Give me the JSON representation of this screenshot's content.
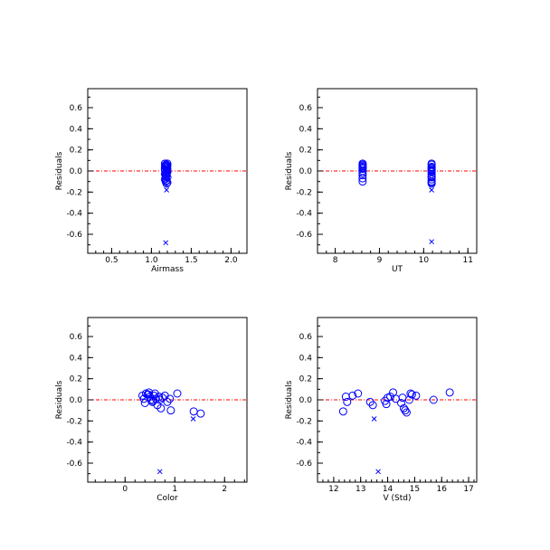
{
  "chart_data": [
    {
      "type": "scatter",
      "xlabel": "Airmass",
      "ylabel": "Residuals",
      "xlim": [
        0.2,
        2.2
      ],
      "ylim": [
        -0.78,
        0.78
      ],
      "xticks": [
        0.5,
        1.0,
        1.5,
        2.0
      ],
      "xtick_labels": [
        "0.5",
        "1.0",
        "1.5",
        "2.0"
      ],
      "yticks": [
        0.6,
        0.4,
        0.2,
        0.0,
        -0.2,
        -0.4,
        -0.6
      ],
      "ytick_labels": [
        "0.6",
        "0.4",
        "0.2",
        "0.0",
        "-0.2",
        "-0.4",
        "-0.6"
      ],
      "zero_line": true,
      "series": [
        {
          "marker": "circle",
          "color": "#0000ff",
          "x": [
            1.17,
            1.18,
            1.19,
            1.2,
            1.17,
            1.18,
            1.19,
            1.2,
            1.17,
            1.19,
            1.2,
            1.18,
            1.17,
            1.19,
            1.18,
            1.2,
            1.17,
            1.19,
            1.18,
            1.2,
            1.19,
            1.18,
            1.17,
            1.19,
            1.2,
            1.18
          ],
          "y": [
            0.07,
            0.06,
            0.06,
            0.05,
            0.04,
            0.04,
            0.03,
            0.02,
            0.01,
            0.0,
            -0.01,
            -0.02,
            -0.03,
            -0.04,
            -0.05,
            -0.06,
            -0.08,
            -0.09,
            -0.1,
            -0.11,
            -0.12,
            0.05,
            0.02,
            -0.02,
            0.07,
            -0.07
          ]
        },
        {
          "marker": "cross",
          "color": "#0000ff",
          "x": [
            1.19,
            1.18
          ],
          "y": [
            -0.18,
            -0.68
          ]
        }
      ]
    },
    {
      "type": "scatter",
      "xlabel": "UT",
      "ylabel": "Residuals",
      "xlim": [
        7.6,
        11.2
      ],
      "ylim": [
        -0.78,
        0.78
      ],
      "xticks": [
        8,
        9,
        10,
        11
      ],
      "xtick_labels": [
        "8",
        "9",
        "10",
        "11"
      ],
      "yticks": [
        0.6,
        0.4,
        0.2,
        0.0,
        -0.2,
        -0.4,
        -0.6
      ],
      "ytick_labels": [
        "0.6",
        "0.4",
        "0.2",
        "0.0",
        "-0.2",
        "-0.4",
        "-0.6"
      ],
      "zero_line": true,
      "series": [
        {
          "marker": "circle",
          "color": "#0000ff",
          "x": [
            8.62,
            8.62,
            8.62,
            8.62,
            8.62,
            8.62,
            8.62,
            8.62,
            8.62,
            8.62,
            8.62,
            10.18,
            10.18,
            10.18,
            10.18,
            10.18,
            10.18,
            10.18,
            10.18,
            10.18,
            10.18,
            10.18,
            10.18,
            10.18,
            10.18,
            10.18
          ],
          "y": [
            0.07,
            0.06,
            0.05,
            0.04,
            0.03,
            0.02,
            0.0,
            -0.02,
            -0.04,
            -0.07,
            -0.1,
            0.07,
            0.06,
            0.04,
            0.03,
            0.01,
            0.0,
            -0.01,
            -0.03,
            -0.05,
            -0.06,
            -0.08,
            -0.1,
            -0.11,
            -0.12,
            0.02
          ]
        },
        {
          "marker": "cross",
          "color": "#0000ff",
          "x": [
            10.18,
            10.18
          ],
          "y": [
            -0.18,
            -0.67
          ]
        }
      ]
    },
    {
      "type": "scatter",
      "xlabel": "Color",
      "ylabel": "Residuals",
      "xlim": [
        -0.75,
        2.45
      ],
      "ylim": [
        -0.78,
        0.78
      ],
      "xticks": [
        0,
        1,
        2
      ],
      "xtick_labels": [
        "0",
        "1",
        "2"
      ],
      "yticks": [
        0.6,
        0.4,
        0.2,
        0.0,
        -0.2,
        -0.4,
        -0.6
      ],
      "ytick_labels": [
        "0.6",
        "0.4",
        "0.2",
        "0.0",
        "-0.2",
        "-0.4",
        "-0.6"
      ],
      "zero_line": true,
      "series": [
        {
          "marker": "circle",
          "color": "#0000ff",
          "x": [
            0.35,
            0.38,
            0.42,
            0.45,
            0.48,
            0.5,
            0.52,
            0.55,
            0.58,
            0.6,
            0.62,
            0.65,
            0.68,
            0.7,
            0.72,
            0.75,
            0.8,
            0.85,
            0.9,
            0.92,
            1.05,
            1.38,
            1.52,
            0.4,
            0.47,
            0.57
          ],
          "y": [
            0.04,
            0.01,
            0.06,
            0.05,
            0.07,
            0.03,
            0.0,
            -0.02,
            0.04,
            0.06,
            0.01,
            -0.05,
            0.03,
            0.0,
            -0.08,
            0.02,
            0.04,
            -0.02,
            0.01,
            -0.1,
            0.06,
            -0.11,
            -0.13,
            -0.03,
            0.05,
            -0.01
          ]
        },
        {
          "marker": "cross",
          "color": "#0000ff",
          "x": [
            1.37,
            0.7
          ],
          "y": [
            -0.18,
            -0.68
          ]
        }
      ]
    },
    {
      "type": "scatter",
      "xlabel": "V (Std)",
      "ylabel": "Residuals",
      "xlim": [
        11.4,
        17.3
      ],
      "ylim": [
        -0.78,
        0.78
      ],
      "xticks": [
        12,
        13,
        14,
        15,
        16,
        17
      ],
      "xtick_labels": [
        "12",
        "13",
        "14",
        "15",
        "16",
        "17"
      ],
      "yticks": [
        0.6,
        0.4,
        0.2,
        0.0,
        -0.2,
        -0.4,
        -0.6
      ],
      "ytick_labels": [
        "0.6",
        "0.4",
        "0.2",
        "0.0",
        "-0.2",
        "-0.4",
        "-0.6"
      ],
      "zero_line": true,
      "series": [
        {
          "marker": "circle",
          "color": "#0000ff",
          "x": [
            12.35,
            12.45,
            12.5,
            12.7,
            12.9,
            13.35,
            13.45,
            13.9,
            14.0,
            14.2,
            14.3,
            14.5,
            14.6,
            14.65,
            14.7,
            14.8,
            14.85,
            14.9,
            15.05,
            15.7,
            16.3,
            14.1,
            13.95,
            14.55
          ],
          "y": [
            -0.11,
            0.03,
            -0.02,
            0.04,
            0.06,
            -0.02,
            -0.05,
            -0.01,
            0.02,
            0.07,
            0.01,
            -0.03,
            -0.08,
            -0.1,
            -0.12,
            0.0,
            0.06,
            0.05,
            0.04,
            0.0,
            0.07,
            0.03,
            -0.04,
            0.02
          ]
        },
        {
          "marker": "cross",
          "color": "#0000ff",
          "x": [
            13.5,
            13.65
          ],
          "y": [
            -0.18,
            -0.68
          ]
        }
      ]
    }
  ]
}
